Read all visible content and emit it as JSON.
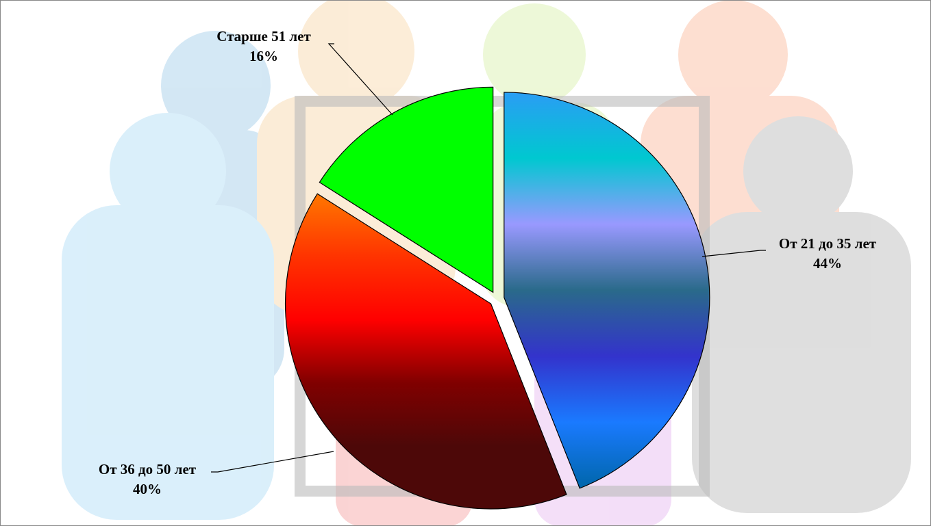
{
  "chart_data": {
    "type": "pie",
    "categories": [
      "От 21 до 35 лет",
      "От 36 до 50 лет",
      "Старше 51 лет"
    ],
    "values": [
      44,
      40,
      16
    ],
    "value_labels": [
      "44%",
      "40%",
      "16%"
    ],
    "gradients": [
      [
        "#2a9df4",
        "#00c8d0",
        "#9999ff",
        "#2a6a8a",
        "#3333cc",
        "#1a7aff",
        "#0066aa"
      ],
      [
        "#ff7700",
        "#ff3300",
        "#ff0000",
        "#800000",
        "#4d0808",
        "#4d0808"
      ],
      [
        "#00ff00",
        "#00ff00"
      ]
    ]
  }
}
